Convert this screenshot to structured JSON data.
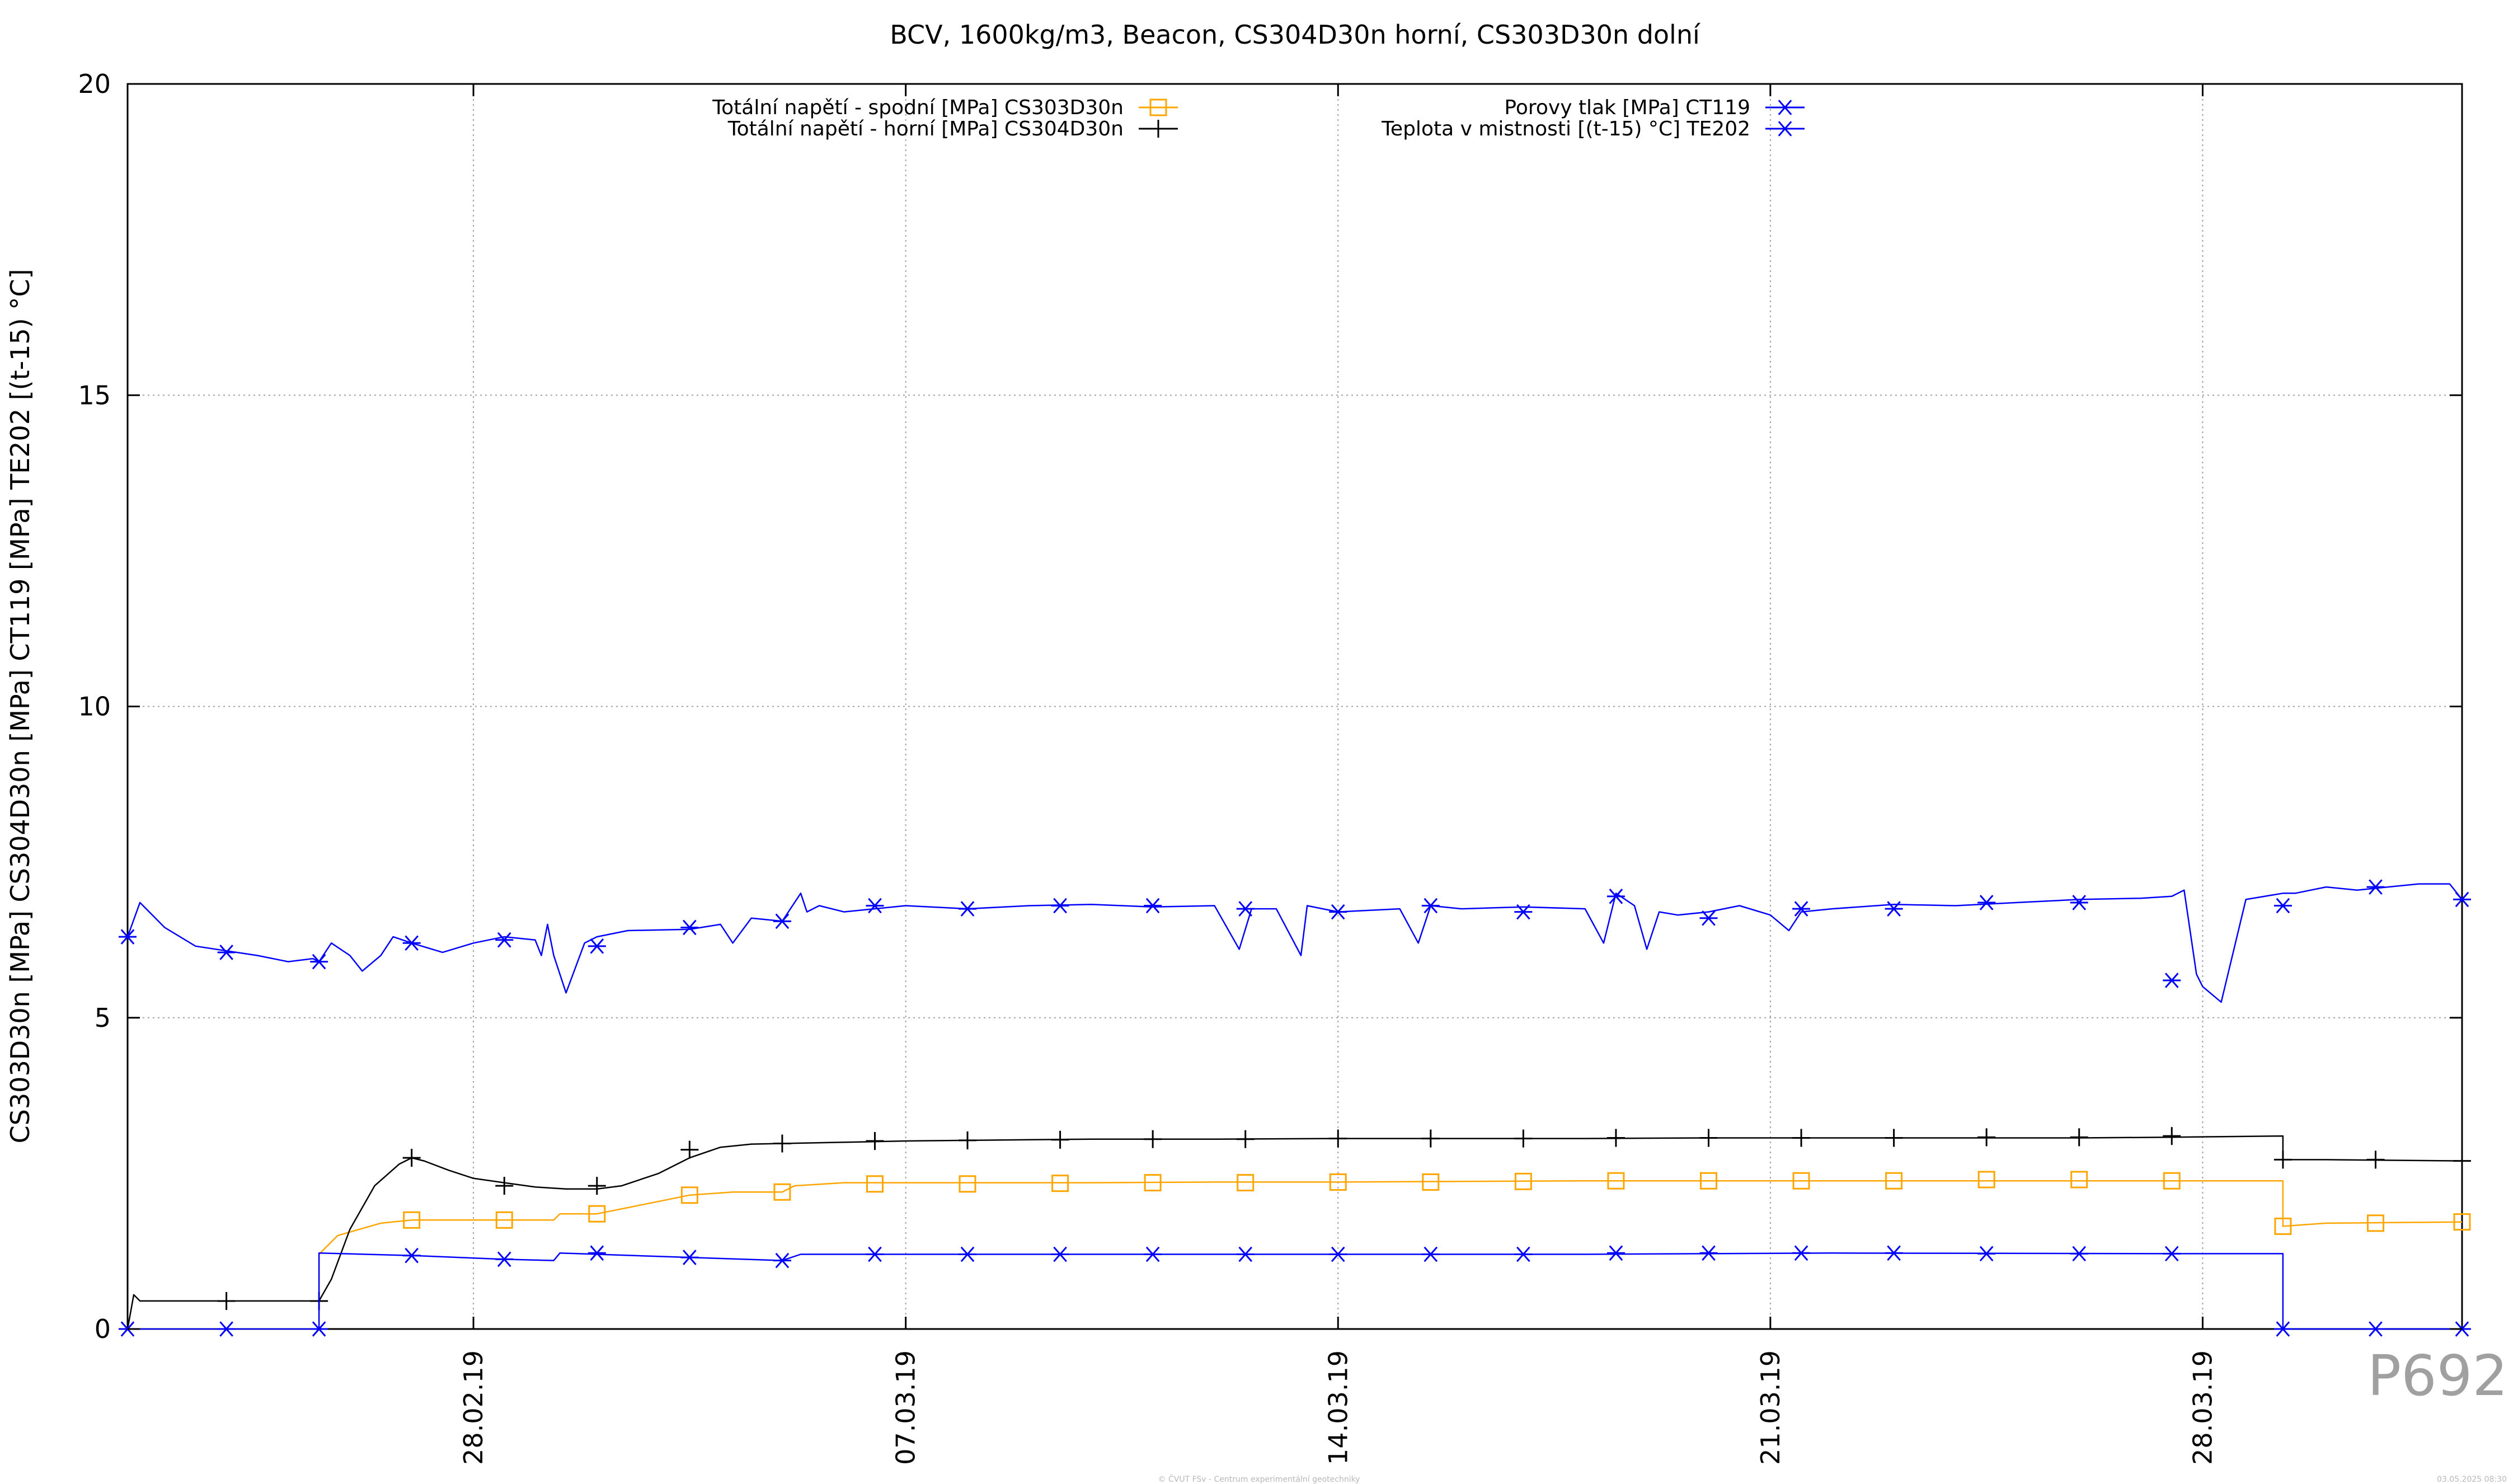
{
  "chart_data": {
    "type": "line",
    "title": "BCV, 1600kg/m3, Beacon, CS304D30n horní, CS303D30n dolní",
    "ylabel": "CS303D30n [MPa] CS304D30n [MPa] CT119 [MPa] TE202 [(t-15) °C]",
    "xlabel": "",
    "ylim": [
      0,
      20
    ],
    "yticks": [
      0,
      5,
      10,
      15,
      20
    ],
    "x_range_days": [
      -5.6,
      32.2
    ],
    "xticks": [
      {
        "label": "28.02.19",
        "day": 0
      },
      {
        "label": "07.03.19",
        "day": 7
      },
      {
        "label": "14.03.19",
        "day": 14
      },
      {
        "label": "21.03.19",
        "day": 21
      },
      {
        "label": "28.03.19",
        "day": 28
      }
    ],
    "grid": true,
    "legend_position": "top",
    "series": [
      {
        "name": "Totální napětí - spodní [MPa] CS303D30n",
        "color": "#FFA500",
        "marker": "square",
        "x": [
          -5.6,
          -2.5,
          -2.5,
          -2.2,
          -1.5,
          -1.0,
          0.5,
          1.0,
          1.3,
          1.4,
          2.0,
          2.5,
          3.5,
          4.2,
          5.0,
          5.2,
          6.0,
          7.0,
          8.0,
          10.0,
          12.0,
          14.0,
          16.0,
          18.0,
          20.0,
          22.0,
          24.0,
          26.0,
          27.5,
          29.3,
          29.3,
          30.0,
          32.2
        ],
        "y": [
          0.0,
          0.0,
          1.2,
          1.5,
          1.7,
          1.75,
          1.75,
          1.75,
          1.75,
          1.85,
          1.85,
          1.95,
          2.15,
          2.2,
          2.2,
          2.3,
          2.35,
          2.35,
          2.35,
          2.35,
          2.36,
          2.36,
          2.37,
          2.38,
          2.38,
          2.38,
          2.38,
          2.38,
          2.38,
          2.38,
          1.65,
          1.7,
          1.72
        ],
        "marker_x": [
          -1.0,
          0.5,
          2.0,
          3.5,
          5.0,
          6.5,
          8.0,
          9.5,
          11.0,
          12.5,
          14.0,
          15.5,
          17.0,
          18.5,
          20.0,
          21.5,
          23.0,
          24.5,
          26.0,
          27.5,
          29.3,
          30.8,
          32.2
        ],
        "marker_y": [
          1.75,
          1.75,
          1.85,
          2.15,
          2.2,
          2.33,
          2.33,
          2.34,
          2.35,
          2.35,
          2.36,
          2.36,
          2.37,
          2.38,
          2.38,
          2.38,
          2.38,
          2.4,
          2.4,
          2.38,
          1.65,
          1.7,
          1.72
        ]
      },
      {
        "name": "Totální napětí - horní [MPa] CS304D30n",
        "color": "#000000",
        "marker": "plus",
        "x": [
          -5.6,
          -5.5,
          -5.4,
          -2.5,
          -2.3,
          -2.0,
          -1.6,
          -1.2,
          -1.0,
          -0.8,
          -0.4,
          0.0,
          0.5,
          1.0,
          1.5,
          2.0,
          2.4,
          3.0,
          3.5,
          4.0,
          4.5,
          5.0,
          6.0,
          7.0,
          8.0,
          10.0,
          12.0,
          14.0,
          16.0,
          18.0,
          20.0,
          22.0,
          24.0,
          26.0,
          27.5,
          29.3,
          29.3,
          30.0,
          32.2
        ],
        "y": [
          0.0,
          0.55,
          0.45,
          0.45,
          0.8,
          1.6,
          2.3,
          2.65,
          2.75,
          2.7,
          2.55,
          2.42,
          2.35,
          2.28,
          2.25,
          2.25,
          2.3,
          2.5,
          2.75,
          2.92,
          2.97,
          2.98,
          3.0,
          3.02,
          3.03,
          3.05,
          3.05,
          3.06,
          3.06,
          3.06,
          3.07,
          3.07,
          3.07,
          3.07,
          3.08,
          3.1,
          2.72,
          2.72,
          2.7
        ],
        "marker_x": [
          -4.0,
          -2.5,
          -1.0,
          0.5,
          2.0,
          3.5,
          5.0,
          6.5,
          8.0,
          9.5,
          11.0,
          12.5,
          14.0,
          15.5,
          17.0,
          18.5,
          20.0,
          21.5,
          23.0,
          24.5,
          26.0,
          27.5,
          29.3,
          30.8,
          32.2
        ],
        "marker_y": [
          0.45,
          0.45,
          2.75,
          2.3,
          2.3,
          2.88,
          2.98,
          3.02,
          3.03,
          3.04,
          3.05,
          3.05,
          3.06,
          3.06,
          3.06,
          3.07,
          3.07,
          3.07,
          3.07,
          3.08,
          3.08,
          3.1,
          2.72,
          2.72,
          2.7
        ]
      },
      {
        "name": "Porovy tlak [MPa] CT119",
        "color": "#0000FF",
        "marker": "star",
        "x": [
          -5.6,
          -2.5,
          -2.5,
          -1.0,
          0.5,
          1.3,
          1.4,
          2.0,
          3.5,
          5.0,
          5.3,
          6.0,
          8.0,
          10.0,
          14.0,
          18.0,
          22.0,
          27.5,
          29.3,
          29.3,
          32.2
        ],
        "y": [
          0.0,
          0.0,
          1.22,
          1.18,
          1.12,
          1.1,
          1.22,
          1.2,
          1.15,
          1.1,
          1.2,
          1.2,
          1.2,
          1.2,
          1.2,
          1.2,
          1.22,
          1.21,
          1.21,
          0.0,
          0.0
        ],
        "marker_x": [
          -5.6,
          -4.0,
          -2.5,
          -1.0,
          0.5,
          2.0,
          3.5,
          5.0,
          6.5,
          8.0,
          9.5,
          11.0,
          12.5,
          14.0,
          15.5,
          17.0,
          18.5,
          20.0,
          21.5,
          23.0,
          24.5,
          26.0,
          27.5,
          29.3,
          30.8,
          32.2
        ],
        "marker_y": [
          0.0,
          0.0,
          0.0,
          1.18,
          1.12,
          1.22,
          1.15,
          1.1,
          1.2,
          1.2,
          1.2,
          1.2,
          1.2,
          1.2,
          1.2,
          1.2,
          1.22,
          1.22,
          1.22,
          1.22,
          1.21,
          1.21,
          1.21,
          0.0,
          0.0,
          0.0
        ]
      },
      {
        "name": "Teplota v mistnosti [(t-15) °C] TE202",
        "color": "#0000FF",
        "marker": "star",
        "x": [
          -5.6,
          -5.4,
          -5.0,
          -4.5,
          -3.5,
          -3.0,
          -2.6,
          -2.5,
          -2.3,
          -2.0,
          -1.8,
          -1.5,
          -1.3,
          -1.0,
          -0.5,
          0.0,
          0.5,
          1.0,
          1.1,
          1.2,
          1.3,
          1.5,
          1.8,
          2.0,
          2.5,
          3.5,
          4.0,
          4.2,
          4.5,
          5.0,
          5.3,
          5.4,
          5.6,
          6.0,
          7.0,
          8.0,
          9.0,
          10.0,
          11.0,
          12.0,
          12.4,
          12.6,
          13.0,
          13.4,
          13.5,
          14.0,
          15.0,
          15.3,
          15.5,
          16.0,
          17.0,
          18.0,
          18.3,
          18.5,
          18.8,
          19.0,
          19.2,
          19.5,
          20.0,
          20.5,
          21.0,
          21.3,
          21.5,
          22.0,
          23.0,
          24.0,
          25.0,
          26.0,
          27.0,
          27.5,
          27.7,
          27.9,
          28.0,
          28.3,
          28.7,
          29.3,
          29.5,
          30.0,
          30.5,
          31.0,
          31.5,
          32.0,
          32.2
        ],
        "y": [
          6.3,
          6.85,
          6.45,
          6.15,
          6.0,
          5.9,
          5.95,
          5.9,
          6.2,
          6.0,
          5.75,
          6.0,
          6.3,
          6.2,
          6.05,
          6.2,
          6.3,
          6.25,
          6.0,
          6.5,
          6.0,
          5.4,
          6.2,
          6.3,
          6.4,
          6.42,
          6.5,
          6.2,
          6.6,
          6.55,
          7.0,
          6.7,
          6.8,
          6.7,
          6.8,
          6.75,
          6.8,
          6.82,
          6.78,
          6.8,
          6.1,
          6.75,
          6.75,
          6.0,
          6.8,
          6.7,
          6.75,
          6.2,
          6.8,
          6.75,
          6.78,
          6.75,
          6.2,
          7.0,
          6.8,
          6.1,
          6.7,
          6.65,
          6.7,
          6.8,
          6.65,
          6.4,
          6.7,
          6.75,
          6.82,
          6.8,
          6.85,
          6.9,
          6.92,
          6.95,
          7.05,
          5.7,
          5.5,
          5.25,
          6.9,
          7.0,
          7.0,
          7.1,
          7.05,
          7.1,
          7.15,
          7.15,
          6.9
        ],
        "marker_x": [
          -5.6,
          -4.0,
          -2.5,
          -1.0,
          0.5,
          2.0,
          3.5,
          5.0,
          6.5,
          8.0,
          9.5,
          11.0,
          12.5,
          14.0,
          15.5,
          17.0,
          18.5,
          20.0,
          21.5,
          23.0,
          24.5,
          26.0,
          27.5,
          29.3,
          30.8,
          32.2
        ],
        "marker_y": [
          6.3,
          6.05,
          5.9,
          6.2,
          6.25,
          6.15,
          6.45,
          6.55,
          6.8,
          6.75,
          6.8,
          6.8,
          6.75,
          6.7,
          6.8,
          6.7,
          6.95,
          6.6,
          6.75,
          6.75,
          6.85,
          6.85,
          5.6,
          6.8,
          7.1,
          6.9
        ]
      }
    ]
  },
  "watermarks": {
    "plot_id": "P692",
    "credit": "© ČVUT FSv - Centrum experimentální geotechniky",
    "date": "03.05.2025 08:30"
  }
}
